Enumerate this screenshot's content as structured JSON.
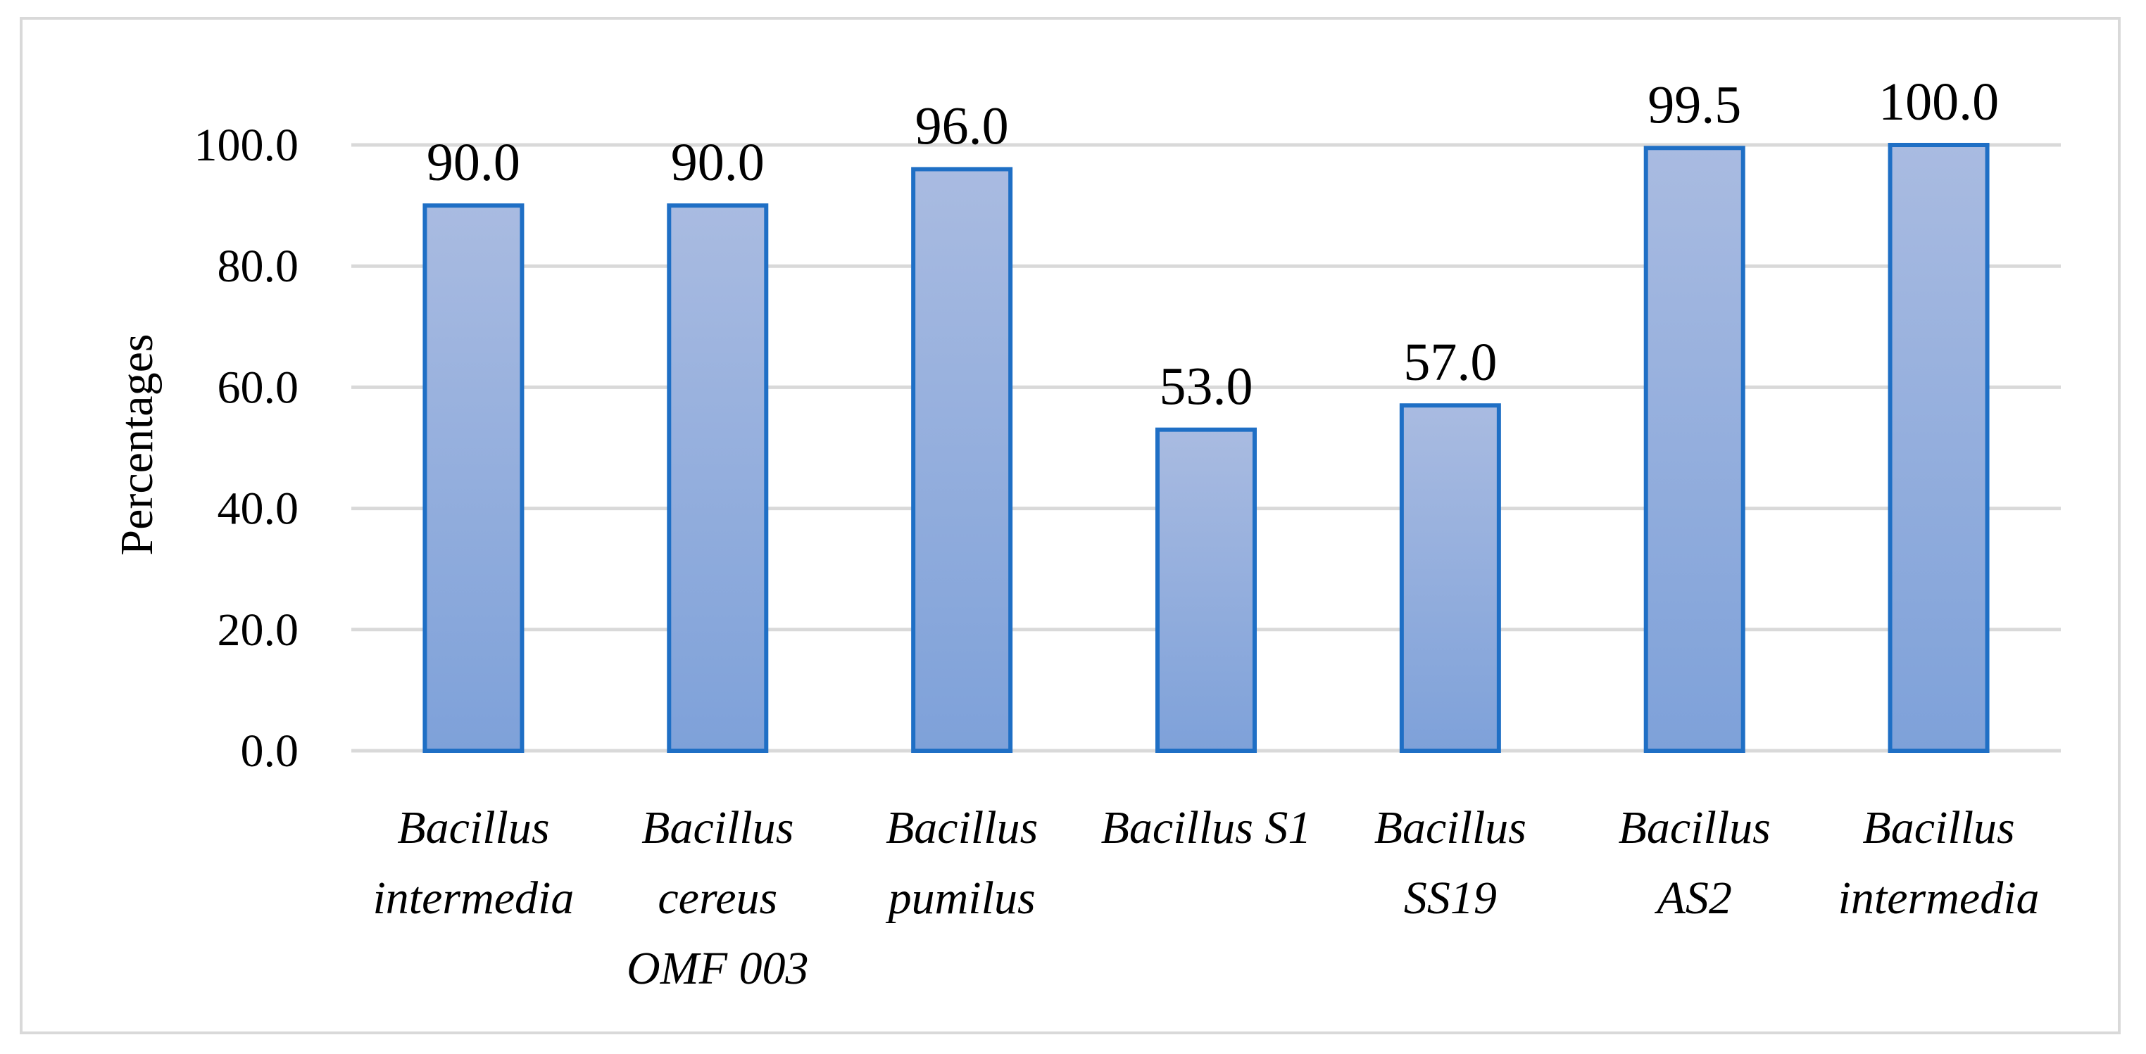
{
  "chart_data": {
    "type": "bar",
    "title": "",
    "xlabel": "",
    "ylabel": "Percentages",
    "ylim": [
      0,
      100
    ],
    "yticks": [
      0,
      20,
      40,
      60,
      80,
      100
    ],
    "ytick_labels": [
      "0.0",
      "20.0",
      "40.0",
      "60.0",
      "80.0",
      "100.0"
    ],
    "categories": [
      [
        "Bacillus",
        "intermedia"
      ],
      [
        "Bacillus",
        "cereus",
        "OMF 003"
      ],
      [
        "Bacillus",
        "pumilus"
      ],
      [
        "Bacillus S1"
      ],
      [
        "Bacillus",
        "SS19"
      ],
      [
        "Bacillus",
        "AS2"
      ],
      [
        "Bacillus",
        "intermedia"
      ]
    ],
    "values": [
      90.0,
      90.0,
      96.0,
      53.0,
      57.0,
      99.5,
      100.0
    ],
    "data_labels": [
      "90.0",
      "90.0",
      "96.0",
      "53.0",
      "57.0",
      "99.5",
      "100.0"
    ],
    "grid": true,
    "legend": "none",
    "colors": {
      "bar_top": "#a9bbe1",
      "bar_bottom": "#7ea1d9",
      "bar_border": "#1f6fc5",
      "grid": "#d9d9d9",
      "axis": "#d9d9d9"
    }
  }
}
